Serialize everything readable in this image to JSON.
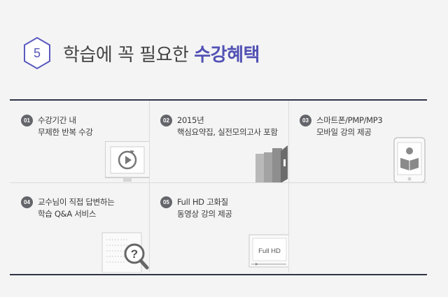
{
  "header": {
    "step_number": "5",
    "title_plain": "학습에 꼭 필요한 ",
    "title_accent": "수강혜택"
  },
  "benefits": [
    {
      "number": "01",
      "line1": "수강기간 내",
      "line2": "무제한 반복 수강",
      "icon": "replay-screen-icon"
    },
    {
      "number": "02",
      "line1": "2015년",
      "line2": "핵심요약집, 실전모의고사 포함",
      "icon": "books-icon"
    },
    {
      "number": "03",
      "line1": "스마트폰/PMP/MP3",
      "line2": "모바일 강의 제공",
      "icon": "tablet-reader-icon"
    },
    {
      "number": "04",
      "line1": "교수님이 직접 답변하는",
      "line2": "학습 Q&A 서비스",
      "icon": "question-magnifier-icon"
    },
    {
      "number": "05",
      "line1": "Full HD 고화질",
      "line2": "동영상 강의 제공",
      "icon": "fullhd-screen-icon"
    }
  ],
  "fullhd_label": "Full HD",
  "colors": {
    "accent": "#5252b5",
    "rule": "#2f3446",
    "badge": "#64656a",
    "background": "#f4f4f4"
  }
}
